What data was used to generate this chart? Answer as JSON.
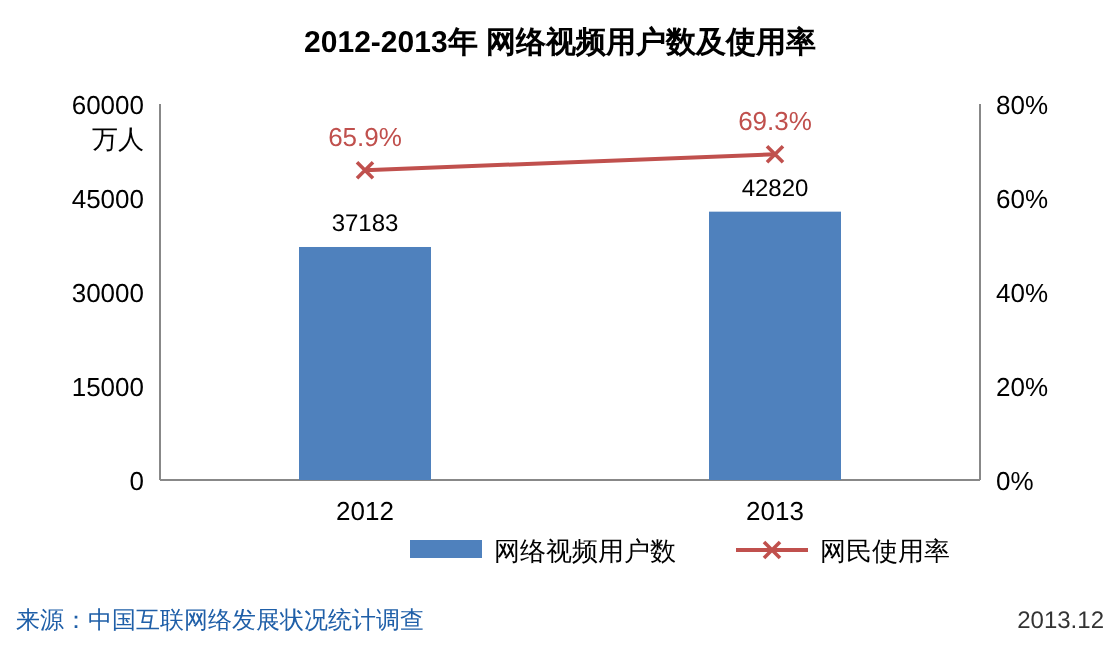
{
  "chart_data": {
    "type": "bar",
    "title": "2012-2013年 网络视频用户数及使用率",
    "ylabel": "万人",
    "categories": [
      "2012",
      "2013"
    ],
    "series": [
      {
        "name": "网络视频用户数",
        "color": "#4f81bd",
        "values": [
          37183,
          42820
        ],
        "value_labels": [
          "37183",
          "42820"
        ]
      },
      {
        "name": "网民使用率",
        "type": "line",
        "axis": "y2",
        "color": "#c0504d",
        "marker": "cross",
        "line_style": "solid",
        "values": [
          65.9,
          69.3
        ],
        "value_labels": [
          "65.9%",
          "69.3%"
        ]
      }
    ],
    "ylim": [
      0,
      60000
    ],
    "yticks": [
      0,
      15000,
      30000,
      45000,
      60000
    ],
    "y2lim": [
      0,
      80
    ],
    "y2ticks": [
      {
        "value": 0,
        "label": "0%"
      },
      {
        "value": 20,
        "label": "20%"
      },
      {
        "value": 40,
        "label": "40%"
      },
      {
        "value": 60,
        "label": "60%"
      },
      {
        "value": 80,
        "label": "80%"
      }
    ],
    "legend": "bottom",
    "annotations": [
      "来源：中国互联网络发展状况统计调查",
      "2013.12"
    ]
  }
}
